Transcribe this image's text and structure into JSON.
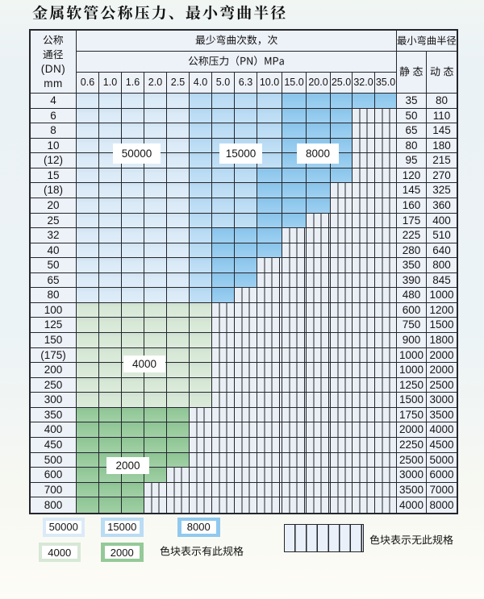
{
  "title": "金属软管公称压力、最小弯曲半径",
  "table": {
    "header": {
      "dn_lines": [
        "公称",
        "通径",
        "(DN)",
        "mm"
      ],
      "cycles_label": "最少弯曲次数，次",
      "pn_label": "公称压力（PN）MPa",
      "radius_label": "最小弯曲半径",
      "static_label": "静态",
      "dynamic_label": "动态",
      "pressures": [
        "0.6",
        "1.0",
        "1.6",
        "2.0",
        "2.5",
        "4.0",
        "5.0",
        "6.3",
        "10.0",
        "15.0",
        "20.0",
        "25.0",
        "32.0",
        "35.0"
      ]
    },
    "rows": [
      {
        "dn": "4",
        "zones": "LLLLLMMMMDDDDD",
        "static": "35",
        "dynamic": "80"
      },
      {
        "dn": "6",
        "zones": "LLLLLMMMMDDDXX",
        "static": "50",
        "dynamic": "110"
      },
      {
        "dn": "8",
        "zones": "LLLLLMMMMDDDXX",
        "static": "65",
        "dynamic": "145"
      },
      {
        "dn": "10",
        "zones": "LLLLLMMMMDDDXX",
        "static": "80",
        "dynamic": "180"
      },
      {
        "dn": "(12)",
        "zones": "LLLLLMMMMDDDXX",
        "static": "95",
        "dynamic": "215"
      },
      {
        "dn": "15",
        "zones": "LLLLLMMMDDDDXX",
        "static": "120",
        "dynamic": "270"
      },
      {
        "dn": "(18)",
        "zones": "LLLLLMMMDDDXXX",
        "static": "145",
        "dynamic": "325"
      },
      {
        "dn": "20",
        "zones": "LLLLLMMMDDDXXX",
        "static": "160",
        "dynamic": "360"
      },
      {
        "dn": "25",
        "zones": "LLLLLMMMDDXXXX",
        "static": "175",
        "dynamic": "400"
      },
      {
        "dn": "32",
        "zones": "LLLLLMDDDXXXXX",
        "static": "225",
        "dynamic": "510"
      },
      {
        "dn": "40",
        "zones": "LLLLLMDDDXXXXX",
        "static": "280",
        "dynamic": "640"
      },
      {
        "dn": "50",
        "zones": "LLLLLMDDXXXXXX",
        "static": "350",
        "dynamic": "800"
      },
      {
        "dn": "65",
        "zones": "LLLLLMDDXXXXXX",
        "static": "390",
        "dynamic": "845"
      },
      {
        "dn": "80",
        "zones": "LLLLLMDXXXXXXX",
        "static": "480",
        "dynamic": "1000"
      },
      {
        "dn": "100",
        "zones": "GGGGGGXXXXXXXX",
        "static": "600",
        "dynamic": "1200"
      },
      {
        "dn": "125",
        "zones": "GGGGGGXXXXXXXX",
        "static": "750",
        "dynamic": "1500"
      },
      {
        "dn": "150",
        "zones": "GGGGGGXXXXXXXX",
        "static": "900",
        "dynamic": "1800"
      },
      {
        "dn": "(175)",
        "zones": "GGGGGGXXXXXXXX",
        "static": "1000",
        "dynamic": "2000"
      },
      {
        "dn": "200",
        "zones": "GGGGGGXXXXXXXX",
        "static": "1000",
        "dynamic": "2000"
      },
      {
        "dn": "250",
        "zones": "GGGGGGXXXXXXXX",
        "static": "1250",
        "dynamic": "2500"
      },
      {
        "dn": "300",
        "zones": "GGGGGGXXXXXXXX",
        "static": "1500",
        "dynamic": "3000"
      },
      {
        "dn": "350",
        "zones": "gggggXXXXXXXXX",
        "static": "1750",
        "dynamic": "3500"
      },
      {
        "dn": "400",
        "zones": "gggggXXXXXXXXX",
        "static": "2000",
        "dynamic": "4000"
      },
      {
        "dn": "450",
        "zones": "gggggXXXXXXXXX",
        "static": "2250",
        "dynamic": "4500"
      },
      {
        "dn": "500",
        "zones": "gggggXXXXXXXXX",
        "static": "2500",
        "dynamic": "5000"
      },
      {
        "dn": "600",
        "zones": "ggggXXXXXXXXXX",
        "static": "3000",
        "dynamic": "6000"
      },
      {
        "dn": "700",
        "zones": "gggXXXXXXXXXXX",
        "static": "3500",
        "dynamic": "7000"
      },
      {
        "dn": "800",
        "zones": "gggXXXXXXXXXXX",
        "static": "4000",
        "dynamic": "8000"
      }
    ]
  },
  "zone_values": {
    "L": "50000",
    "M": "15000",
    "D": "8000",
    "G": "4000",
    "g": "2000",
    "X": ""
  },
  "overlay_labels": [
    {
      "id": "label-50000",
      "value": "50000"
    },
    {
      "id": "label-15000",
      "value": "15000"
    },
    {
      "id": "label-8000",
      "value": "8000"
    },
    {
      "id": "label-4000",
      "value": "4000"
    },
    {
      "id": "label-2000",
      "value": "2000"
    }
  ],
  "legend": {
    "items": [
      {
        "value": "50000",
        "zone": "L"
      },
      {
        "value": "15000",
        "zone": "M"
      },
      {
        "value": "8000",
        "zone": "D"
      },
      {
        "value": "4000",
        "zone": "G"
      },
      {
        "value": "2000",
        "zone": "g"
      }
    ],
    "has_text": "色块表示有此规格",
    "no_text": "色块表示无此规格"
  },
  "colors": {
    "zone_50000": "#daeaf7",
    "zone_15000": "#badcf4",
    "zone_8000": "#90c9ee",
    "zone_4000": "#d7e8d6",
    "zone_2000": "#94c999",
    "hatch_fill": "#eaeff6",
    "hatch_line": "#23262c",
    "header_fill": "#edf1f8",
    "grid_line": "#23262c",
    "text": "#141414",
    "label_box": "#ffffff"
  }
}
